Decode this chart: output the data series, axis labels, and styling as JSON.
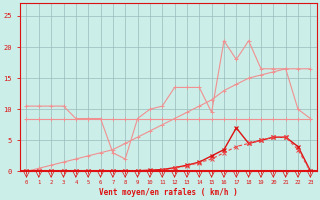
{
  "x": [
    0,
    1,
    2,
    3,
    4,
    5,
    6,
    7,
    8,
    9,
    10,
    11,
    12,
    13,
    14,
    15,
    16,
    17,
    18,
    19,
    20,
    21,
    22,
    23
  ],
  "line_jagged": [
    10.5,
    10.5,
    10.5,
    10.5,
    8.5,
    8.5,
    8.5,
    3.0,
    2.0,
    8.5,
    10.0,
    10.5,
    13.5,
    13.5,
    13.5,
    9.5,
    21.0,
    18.0,
    21.0,
    16.5,
    16.5,
    16.5,
    10.0,
    8.5
  ],
  "line_flat": [
    8.5,
    8.5,
    8.5,
    8.5,
    8.5,
    8.5,
    8.5,
    8.5,
    8.5,
    8.5,
    8.5,
    8.5,
    8.5,
    8.5,
    8.5,
    8.5,
    8.5,
    8.5,
    8.5,
    8.5,
    8.5,
    8.5,
    8.5,
    8.5
  ],
  "line_trend": [
    0.0,
    0.5,
    1.0,
    1.5,
    2.0,
    2.5,
    3.0,
    3.5,
    4.5,
    5.5,
    6.5,
    7.5,
    8.5,
    9.5,
    10.5,
    11.5,
    13.0,
    14.0,
    15.0,
    15.5,
    16.0,
    16.5,
    16.5,
    16.5
  ],
  "line_dark_peak": [
    0.0,
    0.0,
    0.0,
    0.0,
    0.0,
    0.0,
    0.0,
    0.0,
    0.0,
    0.1,
    0.2,
    0.3,
    0.6,
    1.0,
    1.5,
    2.5,
    3.5,
    7.0,
    4.5,
    5.0,
    5.5,
    5.5,
    4.0,
    0.1
  ],
  "line_dashed": [
    0.0,
    0.0,
    0.0,
    0.0,
    0.0,
    0.0,
    0.0,
    0.0,
    0.0,
    0.0,
    0.1,
    0.2,
    0.5,
    0.9,
    1.4,
    2.0,
    3.0,
    4.0,
    4.5,
    5.0,
    5.5,
    5.5,
    3.5,
    0.0
  ],
  "bg_color": "#cceee8",
  "grid_color": "#99bbbb",
  "color_light": "#f09090",
  "color_dark": "#dd1111",
  "color_dashed": "#ee4444",
  "xlabel": "Vent moyen/en rafales ( km/h )",
  "ylim": [
    0,
    27
  ],
  "xlim": [
    -0.5,
    23.5
  ],
  "yticks": [
    0,
    5,
    10,
    15,
    20,
    25
  ]
}
